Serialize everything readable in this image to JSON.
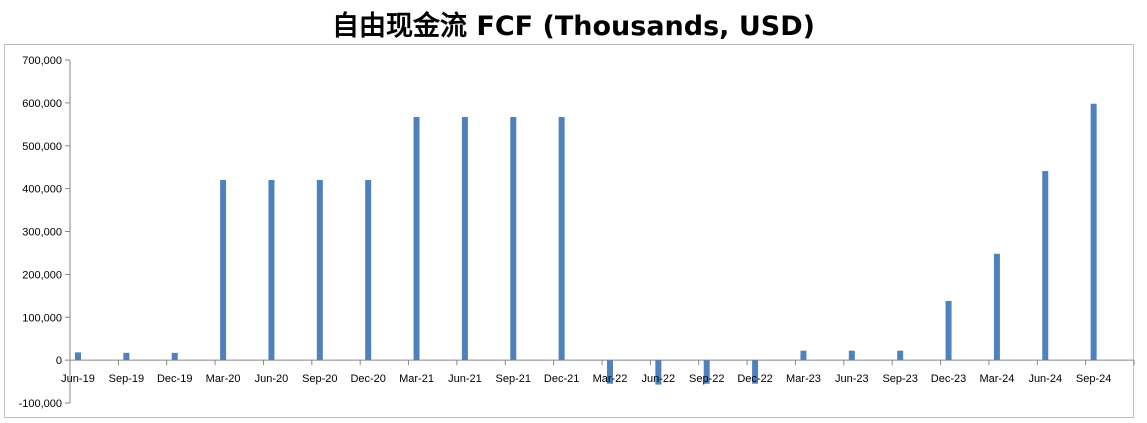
{
  "chart_data": {
    "type": "bar",
    "title": "自由现金流 FCF (Thousands, USD)",
    "xlabel": "",
    "ylabel": "",
    "ylim": [
      -100000,
      700000
    ],
    "yticks": [
      -100000,
      0,
      100000,
      200000,
      300000,
      400000,
      500000,
      600000,
      700000
    ],
    "ytick_labels": [
      "-100,000",
      "0",
      "100,000",
      "200,000",
      "300,000",
      "400,000",
      "500,000",
      "600,000",
      "700,000"
    ],
    "categories": [
      "Jun-19",
      "Sep-19",
      "Dec-19",
      "Mar-20",
      "Jun-20",
      "Sep-20",
      "Dec-20",
      "Mar-21",
      "Jun-21",
      "Sep-21",
      "Dec-21",
      "Mar-22",
      "Jun-22",
      "Sep-22",
      "Dec-22",
      "Mar-23",
      "Jun-23",
      "Sep-23",
      "Dec-23",
      "Mar-24",
      "Jun-24",
      "Sep-24"
    ],
    "values": [
      18000,
      17000,
      17000,
      420000,
      420000,
      420000,
      420000,
      567000,
      567000,
      567000,
      567000,
      -55000,
      -57000,
      -55000,
      -55000,
      22000,
      22000,
      22000,
      138000,
      248000,
      441000,
      598000
    ],
    "bar_color": "#4f81bd",
    "grid": false,
    "legend": "none"
  }
}
